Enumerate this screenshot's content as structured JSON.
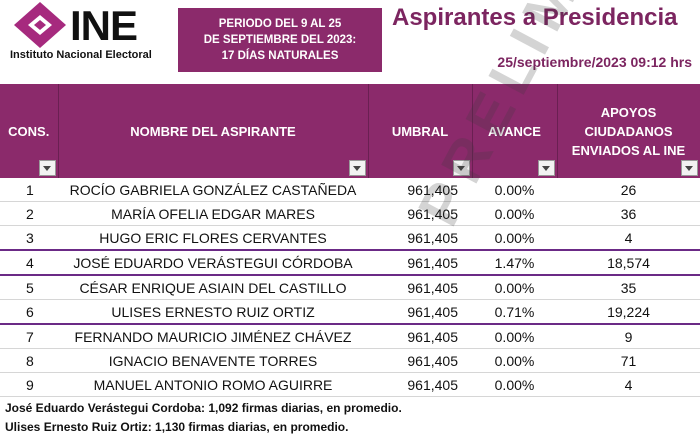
{
  "header": {
    "logo_word": "INE",
    "logo_sub": "Instituto Nacional Electoral",
    "period_lines": [
      "PERIODO DEL 9 AL 25",
      "DE SEPTIEMBRE DEL 2023:",
      "17 DÍAS NATURALES"
    ],
    "title": "Aspirantes a Presidencia",
    "date": "25/septiembre/2023 09:12 hrs"
  },
  "table": {
    "columns": [
      "CONS.",
      "NOMBRE DEL ASPIRANTE",
      "UMBRAL",
      "AVANCE",
      "APOYOS CIUDADANOS ENVIADOS AL INE"
    ],
    "columns_lines": {
      "apoyos": [
        "APOYOS",
        "CIUDADANOS",
        "ENVIADOS AL INE"
      ]
    },
    "rows": [
      {
        "cons": "1",
        "nombre": "ROCÍO GABRIELA GONZÁLEZ CASTAÑEDA",
        "umbral": "961,405",
        "avance": "0.00%",
        "apoyos": "26"
      },
      {
        "cons": "2",
        "nombre": "MARÍA OFELIA EDGAR MARES",
        "umbral": "961,405",
        "avance": "0.00%",
        "apoyos": "36"
      },
      {
        "cons": "3",
        "nombre": "HUGO ERIC FLORES CERVANTES",
        "umbral": "961,405",
        "avance": "0.00%",
        "apoyos": "4"
      },
      {
        "cons": "4",
        "nombre": "JOSÉ EDUARDO VERÁSTEGUI CÓRDOBA",
        "umbral": "961,405",
        "avance": "1.47%",
        "apoyos": "18,574"
      },
      {
        "cons": "5",
        "nombre": "CÉSAR ENRIQUE ASIAIN DEL CASTILLO",
        "umbral": "961,405",
        "avance": "0.00%",
        "apoyos": "35"
      },
      {
        "cons": "6",
        "nombre": "ULISES ERNESTO RUIZ ORTIZ",
        "umbral": "961,405",
        "avance": "0.71%",
        "apoyos": "19,224"
      },
      {
        "cons": "7",
        "nombre": "FERNANDO MAURICIO JIMÉNEZ CHÁVEZ",
        "umbral": "961,405",
        "avance": "0.00%",
        "apoyos": "9"
      },
      {
        "cons": "8",
        "nombre": "IGNACIO BENAVENTE TORRES",
        "umbral": "961,405",
        "avance": "0.00%",
        "apoyos": "71"
      },
      {
        "cons": "9",
        "nombre": "MANUEL ANTONIO ROMO AGUIRRE",
        "umbral": "961,405",
        "avance": "0.00%",
        "apoyos": "4"
      }
    ]
  },
  "watermark": "PRELIM",
  "notes": [
    "José Eduardo Verástegui Cordoba: 1,092 firmas diarias, en promedio.",
    "Ulises Ernesto Ruiz Ortiz: 1,130 firmas diarias, en promedio."
  ],
  "colors": {
    "brand": "#8b2a6b",
    "title": "#7c2560",
    "highlight_line": "#6b2a86"
  }
}
